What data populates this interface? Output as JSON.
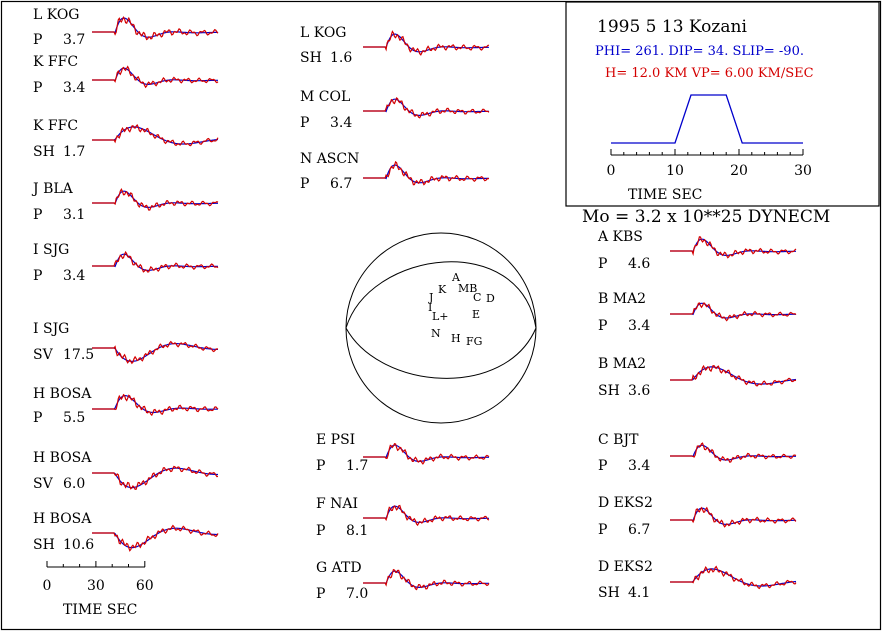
{
  "header": {
    "title": "1995  5 13 Kozani",
    "mechanism": "PHI= 261. DIP= 34. SLIP= -90.",
    "depth": "H= 12.0 KM  VP= 6.00 KM/SEC",
    "moment": "Mo =  3.2 x 10**25 DYNECM"
  },
  "source_time_function": {
    "x": [
      0,
      10,
      12.5,
      18,
      20.5,
      30
    ],
    "y": [
      0,
      0,
      1,
      1,
      0,
      0
    ],
    "ticks": [
      "0",
      "10",
      "20",
      "30"
    ],
    "xlabel": "TIME  SEC",
    "xlim": [
      0,
      30
    ]
  },
  "time_scale": {
    "ticks": [
      "0",
      "30",
      "60"
    ],
    "xlabel": "TIME   SEC"
  },
  "beachball": {
    "stations": [
      {
        "code": "A",
        "label": "A"
      },
      {
        "code": "MB",
        "label": "MB"
      },
      {
        "code": "K",
        "label": "K"
      },
      {
        "code": "J",
        "label": "J"
      },
      {
        "code": "I",
        "label": "I"
      },
      {
        "code": "C",
        "label": "C"
      },
      {
        "code": "D",
        "label": "D"
      },
      {
        "code": "E",
        "label": "E"
      },
      {
        "code": "L+",
        "label": "L+"
      },
      {
        "code": "N",
        "label": "N"
      },
      {
        "code": "H",
        "label": "H"
      },
      {
        "code": "FG",
        "label": "FG"
      }
    ]
  },
  "traces": [
    {
      "line1": "L KOG",
      "phase": "P",
      "amp": "3.7",
      "style": "p"
    },
    {
      "line1": "K FFC",
      "phase": "P",
      "amp": "3.4",
      "style": "p"
    },
    {
      "line1": "K FFC",
      "phase": "SH",
      "amp": "1.7",
      "style": "sh"
    },
    {
      "line1": "J BLA",
      "phase": "P",
      "amp": "3.1",
      "style": "p"
    },
    {
      "line1": "I SJG",
      "phase": "P",
      "amp": "3.4",
      "style": "p"
    },
    {
      "line1": "I SJG",
      "phase": "SV",
      "amp": "17.5",
      "style": "sv"
    },
    {
      "line1": "H BOSA",
      "phase": "P",
      "amp": "5.5",
      "style": "pn"
    },
    {
      "line1": "H BOSA",
      "phase": "SV",
      "amp": "6.0",
      "style": "sv2"
    },
    {
      "line1": "H BOSA",
      "phase": "SH",
      "amp": "10.6",
      "style": "sh2"
    },
    {
      "line1": "L KOG",
      "phase": "SH",
      "amp": "1.6",
      "style": "p"
    },
    {
      "line1": "M COL",
      "phase": "P",
      "amp": "3.4",
      "style": "p"
    },
    {
      "line1": "N ASCN",
      "phase": "P",
      "amp": "6.7",
      "style": "p"
    },
    {
      "line1": "E PSI",
      "phase": "P",
      "amp": "1.7",
      "style": "p"
    },
    {
      "line1": "F NAI",
      "phase": "P",
      "amp": "8.1",
      "style": "p"
    },
    {
      "line1": "G ATD",
      "phase": "P",
      "amp": "7.0",
      "style": "p"
    },
    {
      "line1": "A KBS",
      "phase": "P",
      "amp": "4.6",
      "style": "p"
    },
    {
      "line1": "B MA2",
      "phase": "P",
      "amp": "3.4",
      "style": "p"
    },
    {
      "line1": "B MA2",
      "phase": "SH",
      "amp": "3.6",
      "style": "sh3"
    },
    {
      "line1": "C BJT",
      "phase": "P",
      "amp": "3.4",
      "style": "p"
    },
    {
      "line1": "D EKS2",
      "phase": "P",
      "amp": "6.7",
      "style": "p"
    },
    {
      "line1": "D EKS2",
      "phase": "SH",
      "amp": "4.1",
      "style": "sh4"
    }
  ],
  "colors": {
    "synthetic": "#0000cc",
    "observed": "#d40000"
  }
}
